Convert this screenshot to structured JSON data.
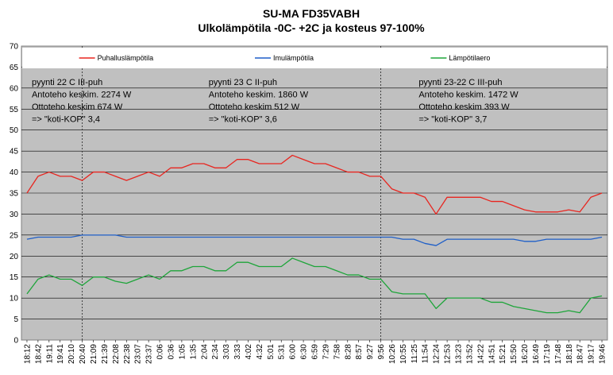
{
  "chart_data": {
    "type": "line",
    "title": "SU-MA FD35VABH",
    "subtitle": "Ulkolämpötila  -0C- +2C ja kosteus 97-100%",
    "ylim": [
      0,
      70
    ],
    "yticks": [
      0,
      5,
      10,
      15,
      20,
      25,
      30,
      35,
      40,
      45,
      50,
      55,
      60,
      65,
      70
    ],
    "grid": true,
    "legend": {
      "position": "top",
      "entries": [
        {
          "name": "Puhalluslämpötila",
          "color": "#e8251f"
        },
        {
          "name": "Imulämpötila",
          "color": "#1f5fc8"
        },
        {
          "name": "Lämpötilaero",
          "color": "#1ea53a"
        }
      ]
    },
    "categories": [
      "18:12",
      "18:42",
      "19:11",
      "19:41",
      "20:10",
      "20:40",
      "21:09",
      "21:39",
      "22:08",
      "22:38",
      "23:07",
      "23:37",
      "0:06",
      "0:36",
      "1:05",
      "1:35",
      "2:04",
      "2:34",
      "3:03",
      "3:33",
      "4:02",
      "4:32",
      "5:01",
      "5:31",
      "6:00",
      "6:30",
      "6:59",
      "7:29",
      "7:58",
      "8:28",
      "8:57",
      "9:27",
      "9:56",
      "10:26",
      "10:55",
      "11:25",
      "11:54",
      "12:24",
      "12:53",
      "13:23",
      "13:52",
      "14:22",
      "14:51",
      "15:21",
      "15:50",
      "16:20",
      "16:49",
      "17:19",
      "17:48",
      "18:18",
      "18:47",
      "19:17",
      "19:46"
    ],
    "period_separators": [
      "20:40",
      "9:56"
    ],
    "annotations": [
      {
        "at": "18:12",
        "lines": [
          "pyynti 22 C III-puh",
          "Antoteho keskim. 2274 W",
          "Ottoteho keskim 674 W",
          "=> \"koti-KOP\" 3,4"
        ]
      },
      {
        "at": "2:04",
        "lines": [
          "pyynti 23 C II-puh",
          "Antoteho keskim. 1860 W",
          "Ottoteho keskim 512 W",
          "=> \"koti-KOP\" 3,6"
        ]
      },
      {
        "at": "11:25",
        "lines": [
          "pyynti 23-22 C III-puh",
          "Antoteho keskim. 1472 W",
          "Ottoteho keskim 393 W",
          "=> \"koti-KOP\" 3,7"
        ]
      }
    ],
    "series": [
      {
        "name": "Puhalluslämpötila",
        "color": "#e8251f",
        "values": [
          35,
          39,
          40,
          39,
          39,
          38,
          40,
          40,
          39,
          38,
          39,
          40,
          39,
          41,
          41,
          42,
          42,
          41,
          41,
          43,
          43,
          42,
          42,
          42,
          44,
          43,
          42,
          42,
          41,
          40,
          40,
          39,
          39,
          36,
          35,
          35,
          34,
          30,
          34,
          34,
          34,
          34,
          33,
          33,
          32,
          31,
          30.5,
          30.5,
          30.5,
          31,
          30.5,
          34,
          35
        ]
      },
      {
        "name": "Imulämpötila",
        "color": "#1f5fc8",
        "values": [
          24,
          24.5,
          24.5,
          24.5,
          24.5,
          25,
          25,
          25,
          25,
          24.5,
          24.5,
          24.5,
          24.5,
          24.5,
          24.5,
          24.5,
          24.5,
          24.5,
          24.5,
          24.5,
          24.5,
          24.5,
          24.5,
          24.5,
          24.5,
          24.5,
          24.5,
          24.5,
          24.5,
          24.5,
          24.5,
          24.5,
          24.5,
          24.5,
          24,
          24,
          23,
          22.5,
          24,
          24,
          24,
          24,
          24,
          24,
          24,
          23.5,
          23.5,
          24,
          24,
          24,
          24,
          24,
          24.5
        ]
      },
      {
        "name": "Lämpötilaero",
        "color": "#1ea53a",
        "values": [
          11,
          14.5,
          15.5,
          14.5,
          14.5,
          13,
          15,
          15,
          14,
          13.5,
          14.5,
          15.5,
          14.5,
          16.5,
          16.5,
          17.5,
          17.5,
          16.5,
          16.5,
          18.5,
          18.5,
          17.5,
          17.5,
          17.5,
          19.5,
          18.5,
          17.5,
          17.5,
          16.5,
          15.5,
          15.5,
          14.5,
          14.5,
          11.5,
          11,
          11,
          11,
          7.5,
          10,
          10,
          10,
          10,
          9,
          9,
          8,
          7.5,
          7,
          6.5,
          6.5,
          7,
          6.5,
          10,
          10.5
        ]
      }
    ]
  }
}
